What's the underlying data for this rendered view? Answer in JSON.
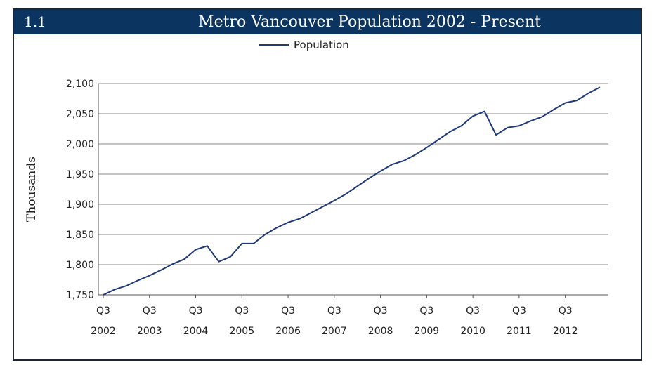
{
  "header": {
    "number": "1.1",
    "title": "Metro Vancouver Population 2002 - Present"
  },
  "colors": {
    "title_bg": "#0c3460",
    "line": "#1f3a7a",
    "grid": "#8a8a8a"
  },
  "chart_data": {
    "type": "line",
    "title": "Metro Vancouver Population 2002 - Present",
    "ylabel": "Thousands",
    "xlabel": "",
    "ylim": [
      1750,
      2100
    ],
    "yticks": [
      "1,750",
      "1,800",
      "1,850",
      "1,900",
      "1,950",
      "2,000",
      "2,050",
      "2,100"
    ],
    "ytick_values": [
      1750,
      1800,
      1850,
      1900,
      1950,
      2000,
      2050,
      2100
    ],
    "xticks": [
      {
        "quarter": "Q3",
        "year": "2002",
        "index": 0
      },
      {
        "quarter": "Q3",
        "year": "2003",
        "index": 4
      },
      {
        "quarter": "Q3",
        "year": "2004",
        "index": 8
      },
      {
        "quarter": "Q3",
        "year": "2005",
        "index": 12
      },
      {
        "quarter": "Q3",
        "year": "2006",
        "index": 16
      },
      {
        "quarter": "Q3",
        "year": "2007",
        "index": 20
      },
      {
        "quarter": "Q3",
        "year": "2008",
        "index": 24
      },
      {
        "quarter": "Q3",
        "year": "2009",
        "index": 28
      },
      {
        "quarter": "Q3",
        "year": "2010",
        "index": 32
      },
      {
        "quarter": "Q3",
        "year": "2011",
        "index": 36
      },
      {
        "quarter": "Q3",
        "year": "2012",
        "index": 40
      }
    ],
    "legend": "top-center",
    "grid": true,
    "series": [
      {
        "name": "Population",
        "values": [
          1750,
          1759,
          1765,
          1774,
          1782,
          1791,
          1801,
          1809,
          1825,
          1831,
          1805,
          1813,
          1835,
          1835,
          1850,
          1861,
          1870,
          1876,
          1886,
          1896,
          1906,
          1917,
          1930,
          1943,
          1955,
          1966,
          1972,
          1982,
          1994,
          2007,
          2020,
          2030,
          2046,
          2054,
          2015,
          2027,
          2030,
          2038,
          2045,
          2057,
          2068,
          2072,
          2084,
          2094
        ]
      }
    ]
  }
}
